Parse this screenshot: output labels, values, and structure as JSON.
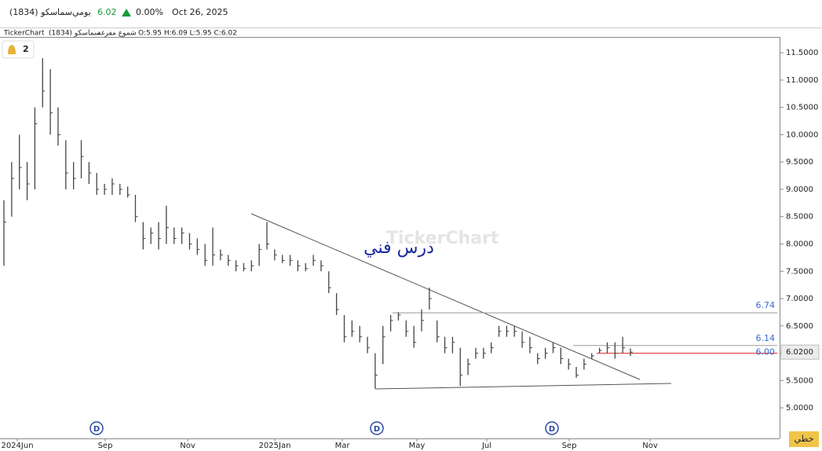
{
  "header": {
    "symbol": "سماسكو (1834)",
    "period": "يومي",
    "price": "6.02",
    "change": "0.00%",
    "date": "Oct 26, 2025"
  },
  "info": {
    "source": "TickerChart",
    "name": "سماسكو (1834)",
    "style": "شموع مفرغة",
    "ohlc": "O:5.95 H:6.09 L:5.95 C:6.02"
  },
  "alerts": "2",
  "watermark": "TickerChart",
  "chart_data": {
    "type": "ohlc",
    "annotation": "درس فني",
    "high": [
      8.8,
      9.5,
      10,
      9.5,
      10.5,
      11.4,
      11.2,
      10.5,
      9.9,
      9.5,
      9.9,
      9.5,
      9.3,
      9.1,
      9.2,
      9.1,
      9.05,
      8.9,
      8.4,
      8.3,
      8.4,
      8.7,
      8.3,
      8.3,
      8.2,
      8.1,
      8.0,
      8.3,
      7.9,
      7.8,
      7.7,
      7.65,
      7.7,
      8.0,
      8.4,
      7.9,
      7.8,
      7.8,
      7.7,
      7.65,
      7.8,
      7.7,
      7.5,
      7.1,
      6.7,
      6.6,
      6.5,
      6.3,
      6.0,
      6.5,
      6.7,
      6.75,
      6.6,
      6.5,
      6.8,
      7.2,
      6.6,
      6.3,
      6.3,
      6.1,
      5.9,
      6.1,
      6.1,
      6.2,
      6.5,
      6.5,
      6.5,
      6.4,
      6.3,
      6.0,
      6.1,
      6.2,
      6.1,
      5.9,
      5.75,
      5.9,
      6.0,
      6.1,
      6.2,
      6.2,
      6.3,
      6.09
    ],
    "low": [
      7.6,
      8.5,
      9,
      8.8,
      9,
      10.5,
      10,
      9.8,
      9,
      9,
      9.2,
      9.1,
      8.9,
      8.9,
      8.9,
      8.9,
      8.85,
      8.4,
      7.9,
      8.0,
      7.9,
      8.0,
      8.0,
      8.0,
      7.9,
      7.8,
      7.6,
      7.6,
      7.7,
      7.6,
      7.5,
      7.5,
      7.5,
      7.6,
      7.9,
      7.7,
      7.65,
      7.6,
      7.5,
      7.5,
      7.6,
      7.5,
      7.1,
      6.7,
      6.2,
      6.3,
      6.2,
      6.0,
      5.35,
      5.8,
      6.4,
      6.6,
      6.3,
      6.1,
      6.4,
      6.8,
      6.2,
      6.0,
      6.0,
      5.4,
      5.6,
      5.9,
      5.9,
      6.0,
      6.3,
      6.3,
      6.3,
      6.1,
      6.0,
      5.8,
      5.9,
      6.0,
      5.8,
      5.7,
      5.55,
      5.7,
      5.9,
      6.0,
      6.0,
      5.9,
      6.0,
      5.95
    ],
    "close": [
      8.4,
      9.2,
      9.4,
      9.1,
      10.2,
      10.8,
      10.4,
      10.0,
      9.3,
      9.2,
      9.6,
      9.3,
      9.0,
      9.0,
      9.1,
      9.0,
      8.9,
      8.5,
      8.1,
      8.2,
      8.1,
      8.3,
      8.1,
      8.2,
      8.0,
      7.9,
      7.7,
      7.8,
      7.8,
      7.7,
      7.6,
      7.55,
      7.6,
      7.9,
      8.0,
      7.8,
      7.7,
      7.7,
      7.6,
      7.55,
      7.7,
      7.6,
      7.2,
      6.8,
      6.3,
      6.4,
      6.3,
      6.1,
      5.6,
      6.3,
      6.6,
      6.7,
      6.4,
      6.2,
      6.6,
      7.0,
      6.3,
      6.1,
      6.2,
      5.6,
      5.8,
      6.0,
      6.0,
      6.1,
      6.4,
      6.4,
      6.4,
      6.2,
      6.1,
      5.9,
      6.0,
      6.1,
      5.9,
      5.8,
      5.6,
      5.8,
      5.95,
      6.05,
      6.1,
      6.0,
      6.1,
      6.02
    ],
    "color": "#444444",
    "x_tick_labels": [
      "2024Jun",
      "Sep",
      "Nov",
      "2025Jan",
      "Mar",
      "May",
      "Jul",
      "Sep",
      "Nov"
    ],
    "ylim": [
      4.44,
      11.79
    ],
    "yticks": [
      {
        "value": 5,
        "label": "5.0000"
      },
      {
        "value": 5.5,
        "label": "5.5000"
      },
      {
        "value": 6,
        "label": "6.0000"
      },
      {
        "value": 6.5,
        "label": "6.5000"
      },
      {
        "value": 7,
        "label": "7.0000"
      },
      {
        "value": 7.5,
        "label": "7.5000"
      },
      {
        "value": 8,
        "label": "8.0000"
      },
      {
        "value": 8.5,
        "label": "8.5000"
      },
      {
        "value": 9,
        "label": "9.0000"
      },
      {
        "value": 9.5,
        "label": "9.5000"
      },
      {
        "value": 10,
        "label": "10.0000"
      },
      {
        "value": 10.5,
        "label": "10.5000"
      },
      {
        "value": 11,
        "label": "11.0000"
      },
      {
        "value": 11.5,
        "label": "11.5000"
      }
    ],
    "levels": [
      6.74,
      6.14,
      {
        "value": 6,
        "label": "6.00"
      }
    ],
    "level_colors": [
      "#999999",
      "#999999",
      "#e03030"
    ],
    "last_price": {
      "value": 6.02,
      "label": "6.0200"
    },
    "events": [
      "D",
      "D",
      "D"
    ]
  },
  "button": "خطي"
}
